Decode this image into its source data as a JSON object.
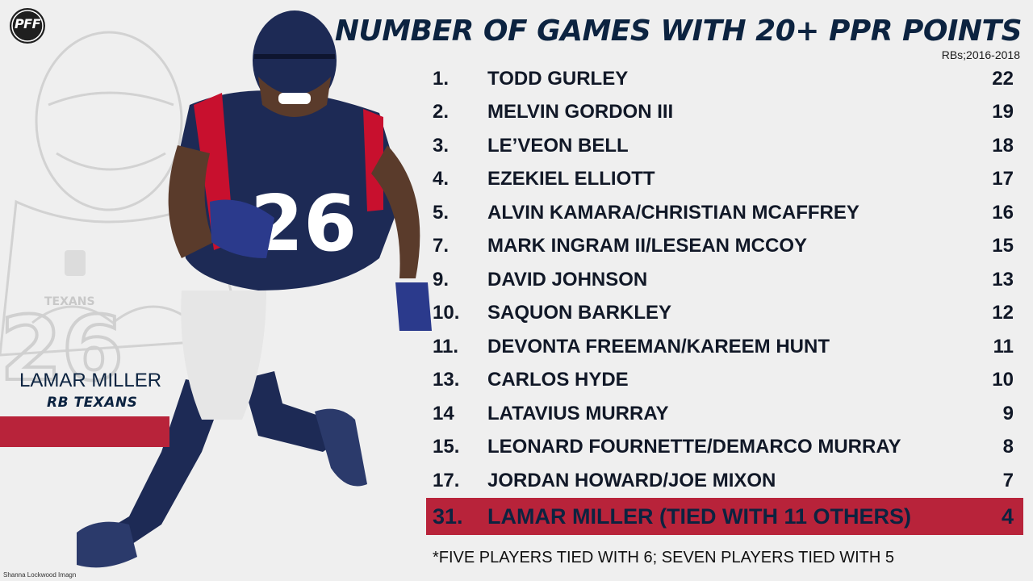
{
  "logo": {
    "text": "PFF"
  },
  "header": {
    "title": "NUMBER OF GAMES WITH 20+ PPR POINTS",
    "subtitle": "RBs;2016-2018"
  },
  "rankings": [
    {
      "rank": "1.",
      "name": "TODD GURLEY",
      "value": "22"
    },
    {
      "rank": "2.",
      "name": "MELVIN GORDON III",
      "value": "19"
    },
    {
      "rank": "3.",
      "name": "LE’VEON BELL",
      "value": "18"
    },
    {
      "rank": "4.",
      "name": "EZEKIEL ELLIOTT",
      "value": "17"
    },
    {
      "rank": "5.",
      "name": "ALVIN KAMARA/CHRISTIAN MCAFFREY",
      "value": "16"
    },
    {
      "rank": "7.",
      "name": "MARK INGRAM II/LESEAN MCCOY",
      "value": "15"
    },
    {
      "rank": "9.",
      "name": "DAVID JOHNSON",
      "value": "13"
    },
    {
      "rank": "10.",
      "name": "SAQUON BARKLEY",
      "value": "12"
    },
    {
      "rank": "11.",
      "name": "DEVONTA FREEMAN/KAREEM HUNT",
      "value": "11"
    },
    {
      "rank": "13.",
      "name": "CARLOS HYDE",
      "value": "10"
    },
    {
      "rank": "14",
      "name": "LATAVIUS MURRAY",
      "value": "9"
    },
    {
      "rank": "15.",
      "name": "LEONARD FOURNETTE/DEMARCO MURRAY",
      "value": "8"
    },
    {
      "rank": "17.",
      "name": "JORDAN HOWARD/JOE MIXON",
      "value": "7"
    }
  ],
  "highlight": {
    "rank": "31.",
    "name": "LAMAR MILLER (TIED WITH 11 OTHERS)",
    "value": "4"
  },
  "footnote": "*FIVE PLAYERS TIED WITH 6; SEVEN PLAYERS TIED WITH 5",
  "player": {
    "name": "LAMAR MILLER",
    "position": "RB TEXANS"
  },
  "credit": "Shanna Lockwood Imagn",
  "colors": {
    "navy": "#0c2340",
    "red": "#b8233a",
    "background": "#efefef"
  }
}
